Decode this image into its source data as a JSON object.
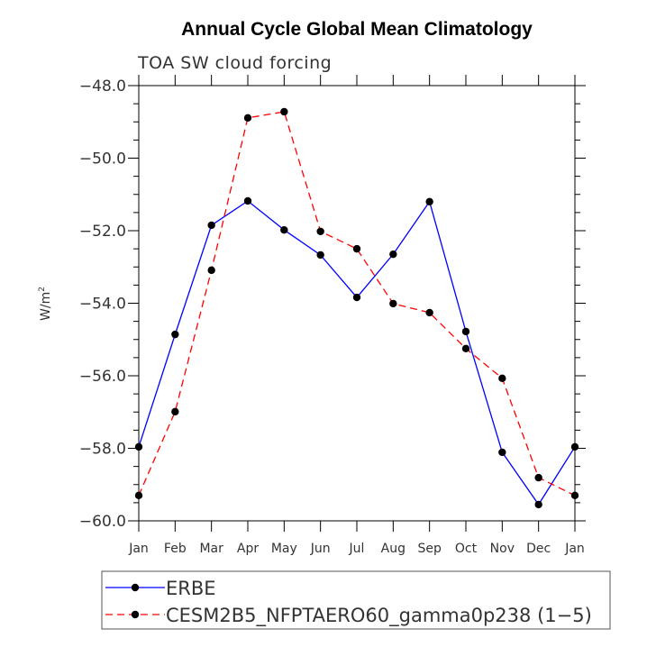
{
  "chart_data": {
    "type": "line",
    "title": "Annual Cycle Global Mean Climatology",
    "subtitle": "TOA SW cloud forcing",
    "ylabel": "W/m",
    "ylabel_sup": "2",
    "xlabel": "",
    "ylim": [
      -60,
      -48
    ],
    "yticks": [
      -48,
      -50,
      -52,
      -54,
      -56,
      -58,
      -60
    ],
    "ytick_labels": [
      "−48.0",
      "−50.0",
      "−52.0",
      "−54.0",
      "−56.0",
      "−58.0",
      "−60.0"
    ],
    "categories": [
      "Jan",
      "Feb",
      "Mar",
      "Apr",
      "May",
      "Jun",
      "Jul",
      "Aug",
      "Sep",
      "Oct",
      "Nov",
      "Dec",
      "Jan"
    ],
    "series": [
      {
        "name": "ERBE",
        "color": "#0000ff",
        "dash": "solid",
        "values": [
          -57.96,
          -54.86,
          -51.85,
          -51.18,
          -51.98,
          -52.67,
          -53.84,
          -52.65,
          -51.2,
          -54.78,
          -58.11,
          -59.55,
          -57.96
        ]
      },
      {
        "name": "CESM2B5_NFPTAERO60_gamma0p238 (1−5)",
        "color": "#ff0000",
        "dash": "dashed",
        "values": [
          -59.3,
          -56.99,
          -53.09,
          -48.89,
          -48.72,
          -52.02,
          -52.5,
          -54.01,
          -54.26,
          -55.25,
          -56.07,
          -58.81,
          -59.3
        ]
      }
    ],
    "legend_position": "bottom",
    "grid": false
  }
}
